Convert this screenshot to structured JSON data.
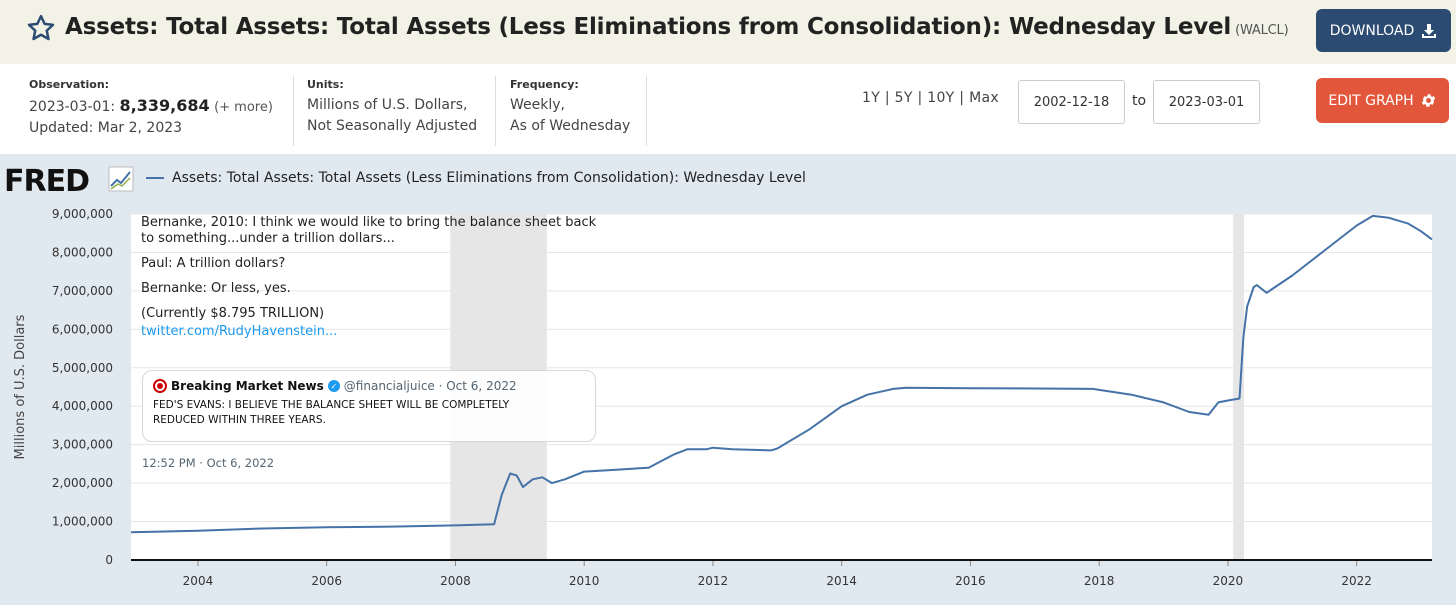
{
  "header": {
    "title": "Assets: Total Assets: Total Assets (Less Eliminations from Consolidation): Wednesday Level",
    "series_id": "(WALCL)",
    "download_label": "DOWNLOAD",
    "star_icon": "star-outline-icon",
    "download_icon": "download-icon"
  },
  "info": {
    "observation_label": "Observation:",
    "observation_date": "2023-03-01:",
    "observation_value": "8,339,684",
    "observation_more": "(+ more)",
    "updated": "Updated: Mar 2, 2023",
    "units_label": "Units:",
    "units_line1": "Millions of U.S. Dollars,",
    "units_line2": "Not Seasonally Adjusted",
    "frequency_label": "Frequency:",
    "frequency_line1": "Weekly,",
    "frequency_line2": "As of Wednesday"
  },
  "controls": {
    "range_1y": "1Y",
    "range_5y": "5Y",
    "range_10y": "10Y",
    "range_max": "Max",
    "sep": "|",
    "start_date": "2002-12-18",
    "to_label": "to",
    "end_date": "2023-03-01",
    "edit_label": "EDIT GRAPH",
    "edit_icon": "gear-icon"
  },
  "chart_header": {
    "logo": "FRED",
    "legend_label": "Assets: Total Assets: Total Assets (Less Eliminations from Consolidation): Wednesday Level"
  },
  "tweet": {
    "p1": "Bernanke, 2010: I think we would like to bring the balance sheet back to something...under a trillion dollars...",
    "p2": "Paul: A trillion dollars?",
    "p3": "Bernanke: Or less, yes.",
    "p4": "(Currently $8.795 TRILLION)",
    "link": "twitter.com/RudyHavenstein...",
    "quote_name": "Breaking Market News",
    "quote_handle": "@financialjuice · Oct 6, 2022",
    "quote_body_line1": "FED'S EVANS: I BELIEVE THE BALANCE SHEET WILL BE COMPLETELY",
    "quote_body_line2": "REDUCED WITHIN THREE YEARS.",
    "time": "12:52 PM · Oct 6, 2022"
  },
  "colors": {
    "line": "#4572a7",
    "recession": "#e6e6e6",
    "download_bg": "#2b4b72",
    "edit_bg": "#e2573b",
    "chart_bg": "#e1e9f0"
  },
  "chart_data": {
    "type": "line",
    "ylabel": "Millions of U.S. Dollars",
    "xlabel": "",
    "ylim": [
      0,
      9000000
    ],
    "xlim": [
      2002.96,
      2023.17
    ],
    "y_ticks": [
      0,
      1000000,
      2000000,
      3000000,
      4000000,
      5000000,
      6000000,
      7000000,
      8000000,
      9000000
    ],
    "y_tick_labels": [
      "0",
      "1,000,000",
      "2,000,000",
      "3,000,000",
      "4,000,000",
      "5,000,000",
      "6,000,000",
      "7,000,000",
      "8,000,000",
      "9,000,000"
    ],
    "x_ticks": [
      2004,
      2006,
      2008,
      2010,
      2012,
      2014,
      2016,
      2018,
      2020,
      2022
    ],
    "x_tick_labels": [
      "2004",
      "2006",
      "2008",
      "2010",
      "2012",
      "2014",
      "2016",
      "2018",
      "2020",
      "2022"
    ],
    "grid": true,
    "recessions": [
      [
        2007.92,
        2009.42
      ],
      [
        2020.08,
        2020.25
      ]
    ],
    "series": [
      {
        "name": "Assets: Total Assets: Total Assets (Less Eliminations from Consolidation): Wednesday Level",
        "x": [
          2002.96,
          2004.0,
          2005.0,
          2006.0,
          2007.0,
          2008.0,
          2008.6,
          2008.72,
          2008.85,
          2008.95,
          2009.05,
          2009.2,
          2009.35,
          2009.5,
          2009.7,
          2010.0,
          2010.5,
          2011.0,
          2011.4,
          2011.6,
          2011.9,
          2012.0,
          2012.3,
          2012.9,
          2013.0,
          2013.5,
          2014.0,
          2014.4,
          2014.8,
          2015.0,
          2016.0,
          2017.0,
          2017.9,
          2018.5,
          2019.0,
          2019.4,
          2019.7,
          2019.85,
          2020.0,
          2020.18,
          2020.24,
          2020.3,
          2020.4,
          2020.45,
          2020.6,
          2021.0,
          2021.5,
          2022.0,
          2022.25,
          2022.5,
          2022.8,
          2023.0,
          2023.17
        ],
        "values": [
          720000,
          760000,
          820000,
          850000,
          870000,
          900000,
          930000,
          1700000,
          2250000,
          2200000,
          1900000,
          2100000,
          2150000,
          2000000,
          2100000,
          2300000,
          2350000,
          2400000,
          2750000,
          2880000,
          2880000,
          2920000,
          2880000,
          2850000,
          2900000,
          3400000,
          4000000,
          4300000,
          4450000,
          4480000,
          4470000,
          4460000,
          4450000,
          4300000,
          4100000,
          3850000,
          3780000,
          4100000,
          4150000,
          4200000,
          5800000,
          6600000,
          7100000,
          7150000,
          6950000,
          7400000,
          8050000,
          8700000,
          8950000,
          8900000,
          8750000,
          8550000,
          8340000
        ]
      }
    ]
  }
}
